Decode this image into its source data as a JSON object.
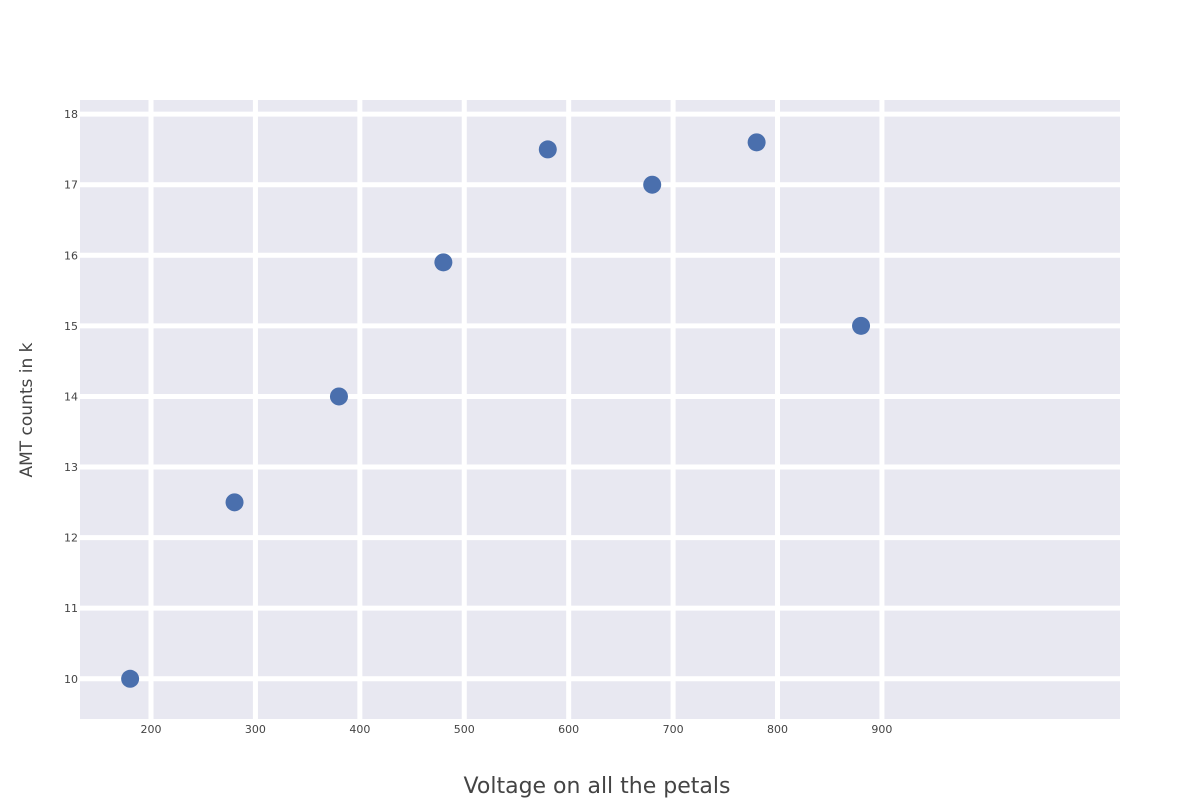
{
  "chart_data": {
    "type": "scatter",
    "title": "",
    "xlabel": "Voltage on all the petals",
    "ylabel": "AMT counts in k",
    "xlim": [
      132,
      1128
    ],
    "ylim": [
      9.43,
      18.2
    ],
    "x_ticks": [
      200,
      300,
      400,
      500,
      600,
      700,
      800,
      900
    ],
    "y_ticks": [
      10,
      11,
      12,
      13,
      14,
      15,
      16,
      17,
      18
    ],
    "grid": true,
    "legend": "none",
    "colors": {
      "plot_background": "#e8e8f1",
      "gridline": "#ffffff",
      "marker": "#4a6fad"
    },
    "series": [
      {
        "x": [
          180,
          280,
          380,
          480,
          580,
          680,
          780,
          880
        ],
        "y": [
          10.0,
          12.5,
          14.0,
          15.9,
          17.5,
          17.0,
          17.6,
          15.0
        ]
      }
    ]
  }
}
